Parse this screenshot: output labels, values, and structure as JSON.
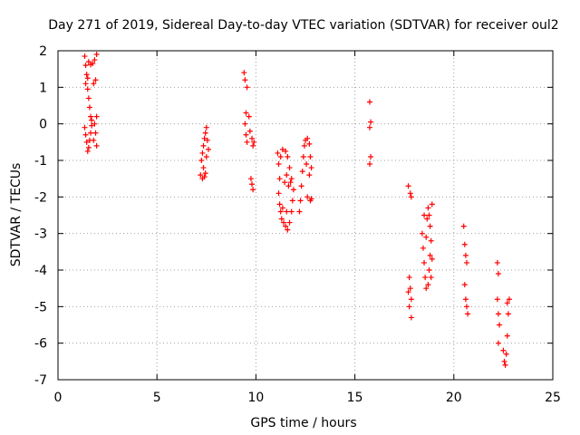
{
  "chart_data": {
    "type": "scatter",
    "title": "Day 271 of 2019, Sidereal Day-to-day VTEC variation (SDTVAR) for receiver oul2",
    "xlabel": "GPS time / hours",
    "ylabel": "SDTVAR / TECUs",
    "xlim": [
      0,
      25
    ],
    "ylim": [
      -7,
      2
    ],
    "xticks": [
      0,
      5,
      10,
      15,
      20,
      25
    ],
    "yticks": [
      -7,
      -6,
      -5,
      -4,
      -3,
      -2,
      -1,
      0,
      1,
      2
    ],
    "grid": true,
    "marker": "+",
    "color": "#ff0000",
    "series": [
      {
        "name": "SDTVAR",
        "points": [
          [
            1.35,
            1.85
          ],
          [
            1.4,
            1.6
          ],
          [
            1.45,
            1.35
          ],
          [
            1.4,
            1.1
          ],
          [
            1.5,
            0.95
          ],
          [
            1.55,
            0.7
          ],
          [
            1.6,
            0.45
          ],
          [
            1.65,
            0.2
          ],
          [
            1.7,
            -0.05
          ],
          [
            1.65,
            -0.25
          ],
          [
            1.6,
            -0.45
          ],
          [
            1.55,
            -0.65
          ],
          [
            1.5,
            -0.75
          ],
          [
            1.35,
            -0.1
          ],
          [
            1.4,
            -0.3
          ],
          [
            1.45,
            -0.5
          ],
          [
            1.55,
            1.7
          ],
          [
            1.65,
            1.62
          ],
          [
            1.75,
            1.65
          ],
          [
            1.85,
            1.75
          ],
          [
            1.95,
            1.9
          ],
          [
            1.9,
            1.2
          ],
          [
            1.8,
            1.1
          ],
          [
            1.95,
            0.2
          ],
          [
            1.85,
            0.0
          ],
          [
            1.9,
            -0.25
          ],
          [
            1.8,
            -0.45
          ],
          [
            1.95,
            -0.6
          ],
          [
            1.5,
            1.25
          ],
          [
            1.7,
            0.1
          ],
          [
            7.2,
            -1.4
          ],
          [
            7.3,
            -1.5
          ],
          [
            7.4,
            -1.45
          ],
          [
            7.25,
            -1.0
          ],
          [
            7.3,
            -0.8
          ],
          [
            7.35,
            -0.6
          ],
          [
            7.4,
            -0.4
          ],
          [
            7.45,
            -0.25
          ],
          [
            7.5,
            -0.1
          ],
          [
            7.55,
            -0.45
          ],
          [
            7.6,
            -0.7
          ],
          [
            7.5,
            -0.9
          ],
          [
            7.35,
            -1.2
          ],
          [
            7.45,
            -1.35
          ],
          [
            9.4,
            1.4
          ],
          [
            9.45,
            1.2
          ],
          [
            9.55,
            1.0
          ],
          [
            9.5,
            0.3
          ],
          [
            9.45,
            0.0
          ],
          [
            9.5,
            -0.3
          ],
          [
            9.55,
            -0.5
          ],
          [
            9.65,
            0.2
          ],
          [
            9.7,
            -0.2
          ],
          [
            9.8,
            -0.4
          ],
          [
            9.85,
            -0.6
          ],
          [
            9.75,
            -1.5
          ],
          [
            9.8,
            -1.65
          ],
          [
            9.85,
            -1.8
          ],
          [
            9.9,
            -0.5
          ],
          [
            11.1,
            -0.8
          ],
          [
            11.15,
            -1.1
          ],
          [
            11.2,
            -1.5
          ],
          [
            11.15,
            -1.9
          ],
          [
            11.2,
            -2.2
          ],
          [
            11.25,
            -2.4
          ],
          [
            11.3,
            -2.6
          ],
          [
            11.4,
            -2.7
          ],
          [
            11.5,
            -2.8
          ],
          [
            11.6,
            -2.9
          ],
          [
            11.7,
            -2.7
          ],
          [
            11.8,
            -2.4
          ],
          [
            11.85,
            -2.1
          ],
          [
            11.9,
            -1.8
          ],
          [
            11.8,
            -1.5
          ],
          [
            11.7,
            -1.2
          ],
          [
            11.6,
            -0.9
          ],
          [
            11.5,
            -0.75
          ],
          [
            11.35,
            -0.7
          ],
          [
            11.25,
            -0.9
          ],
          [
            11.45,
            -1.6
          ],
          [
            11.55,
            -1.4
          ],
          [
            11.65,
            -1.7
          ],
          [
            11.75,
            -1.6
          ],
          [
            11.55,
            -2.4
          ],
          [
            11.35,
            -2.3
          ],
          [
            12.2,
            -2.4
          ],
          [
            12.25,
            -2.1
          ],
          [
            12.3,
            -1.7
          ],
          [
            12.35,
            -1.3
          ],
          [
            12.4,
            -0.9
          ],
          [
            12.45,
            -0.6
          ],
          [
            12.5,
            -0.45
          ],
          [
            12.6,
            -0.4
          ],
          [
            12.7,
            -0.55
          ],
          [
            12.75,
            -0.9
          ],
          [
            12.8,
            -1.2
          ],
          [
            12.7,
            -1.4
          ],
          [
            12.6,
            -2.0
          ],
          [
            12.75,
            -2.1
          ],
          [
            12.8,
            -2.05
          ],
          [
            12.55,
            -1.1
          ],
          [
            15.75,
            0.6
          ],
          [
            15.8,
            0.05
          ],
          [
            15.75,
            -0.1
          ],
          [
            15.8,
            -0.9
          ],
          [
            15.75,
            -1.1
          ],
          [
            17.7,
            -1.7
          ],
          [
            17.8,
            -1.9
          ],
          [
            17.85,
            -2.0
          ],
          [
            17.75,
            -4.2
          ],
          [
            17.8,
            -4.5
          ],
          [
            17.85,
            -4.8
          ],
          [
            17.75,
            -5.0
          ],
          [
            17.85,
            -5.3
          ],
          [
            17.7,
            -4.6
          ],
          [
            18.4,
            -3.0
          ],
          [
            18.45,
            -3.4
          ],
          [
            18.5,
            -3.8
          ],
          [
            18.55,
            -4.2
          ],
          [
            18.6,
            -4.5
          ],
          [
            18.65,
            -2.6
          ],
          [
            18.7,
            -2.3
          ],
          [
            18.75,
            -2.5
          ],
          [
            18.8,
            -2.8
          ],
          [
            18.85,
            -3.2
          ],
          [
            18.8,
            -3.6
          ],
          [
            18.75,
            -4.0
          ],
          [
            18.7,
            -4.4
          ],
          [
            18.9,
            -3.7
          ],
          [
            18.85,
            -4.2
          ],
          [
            18.5,
            -2.5
          ],
          [
            18.6,
            -3.1
          ],
          [
            18.9,
            -2.2
          ],
          [
            20.5,
            -2.8
          ],
          [
            20.55,
            -3.3
          ],
          [
            20.6,
            -3.6
          ],
          [
            20.65,
            -3.8
          ],
          [
            20.55,
            -4.4
          ],
          [
            20.6,
            -4.8
          ],
          [
            20.65,
            -5.0
          ],
          [
            20.7,
            -5.2
          ],
          [
            22.2,
            -3.8
          ],
          [
            22.25,
            -4.1
          ],
          [
            22.2,
            -4.8
          ],
          [
            22.25,
            -5.2
          ],
          [
            22.3,
            -5.5
          ],
          [
            22.25,
            -6.0
          ],
          [
            22.5,
            -6.2
          ],
          [
            22.55,
            -6.5
          ],
          [
            22.6,
            -6.6
          ],
          [
            22.65,
            -6.3
          ],
          [
            22.7,
            -5.8
          ],
          [
            22.75,
            -5.2
          ],
          [
            22.8,
            -4.8
          ],
          [
            22.7,
            -4.9
          ]
        ]
      }
    ]
  }
}
